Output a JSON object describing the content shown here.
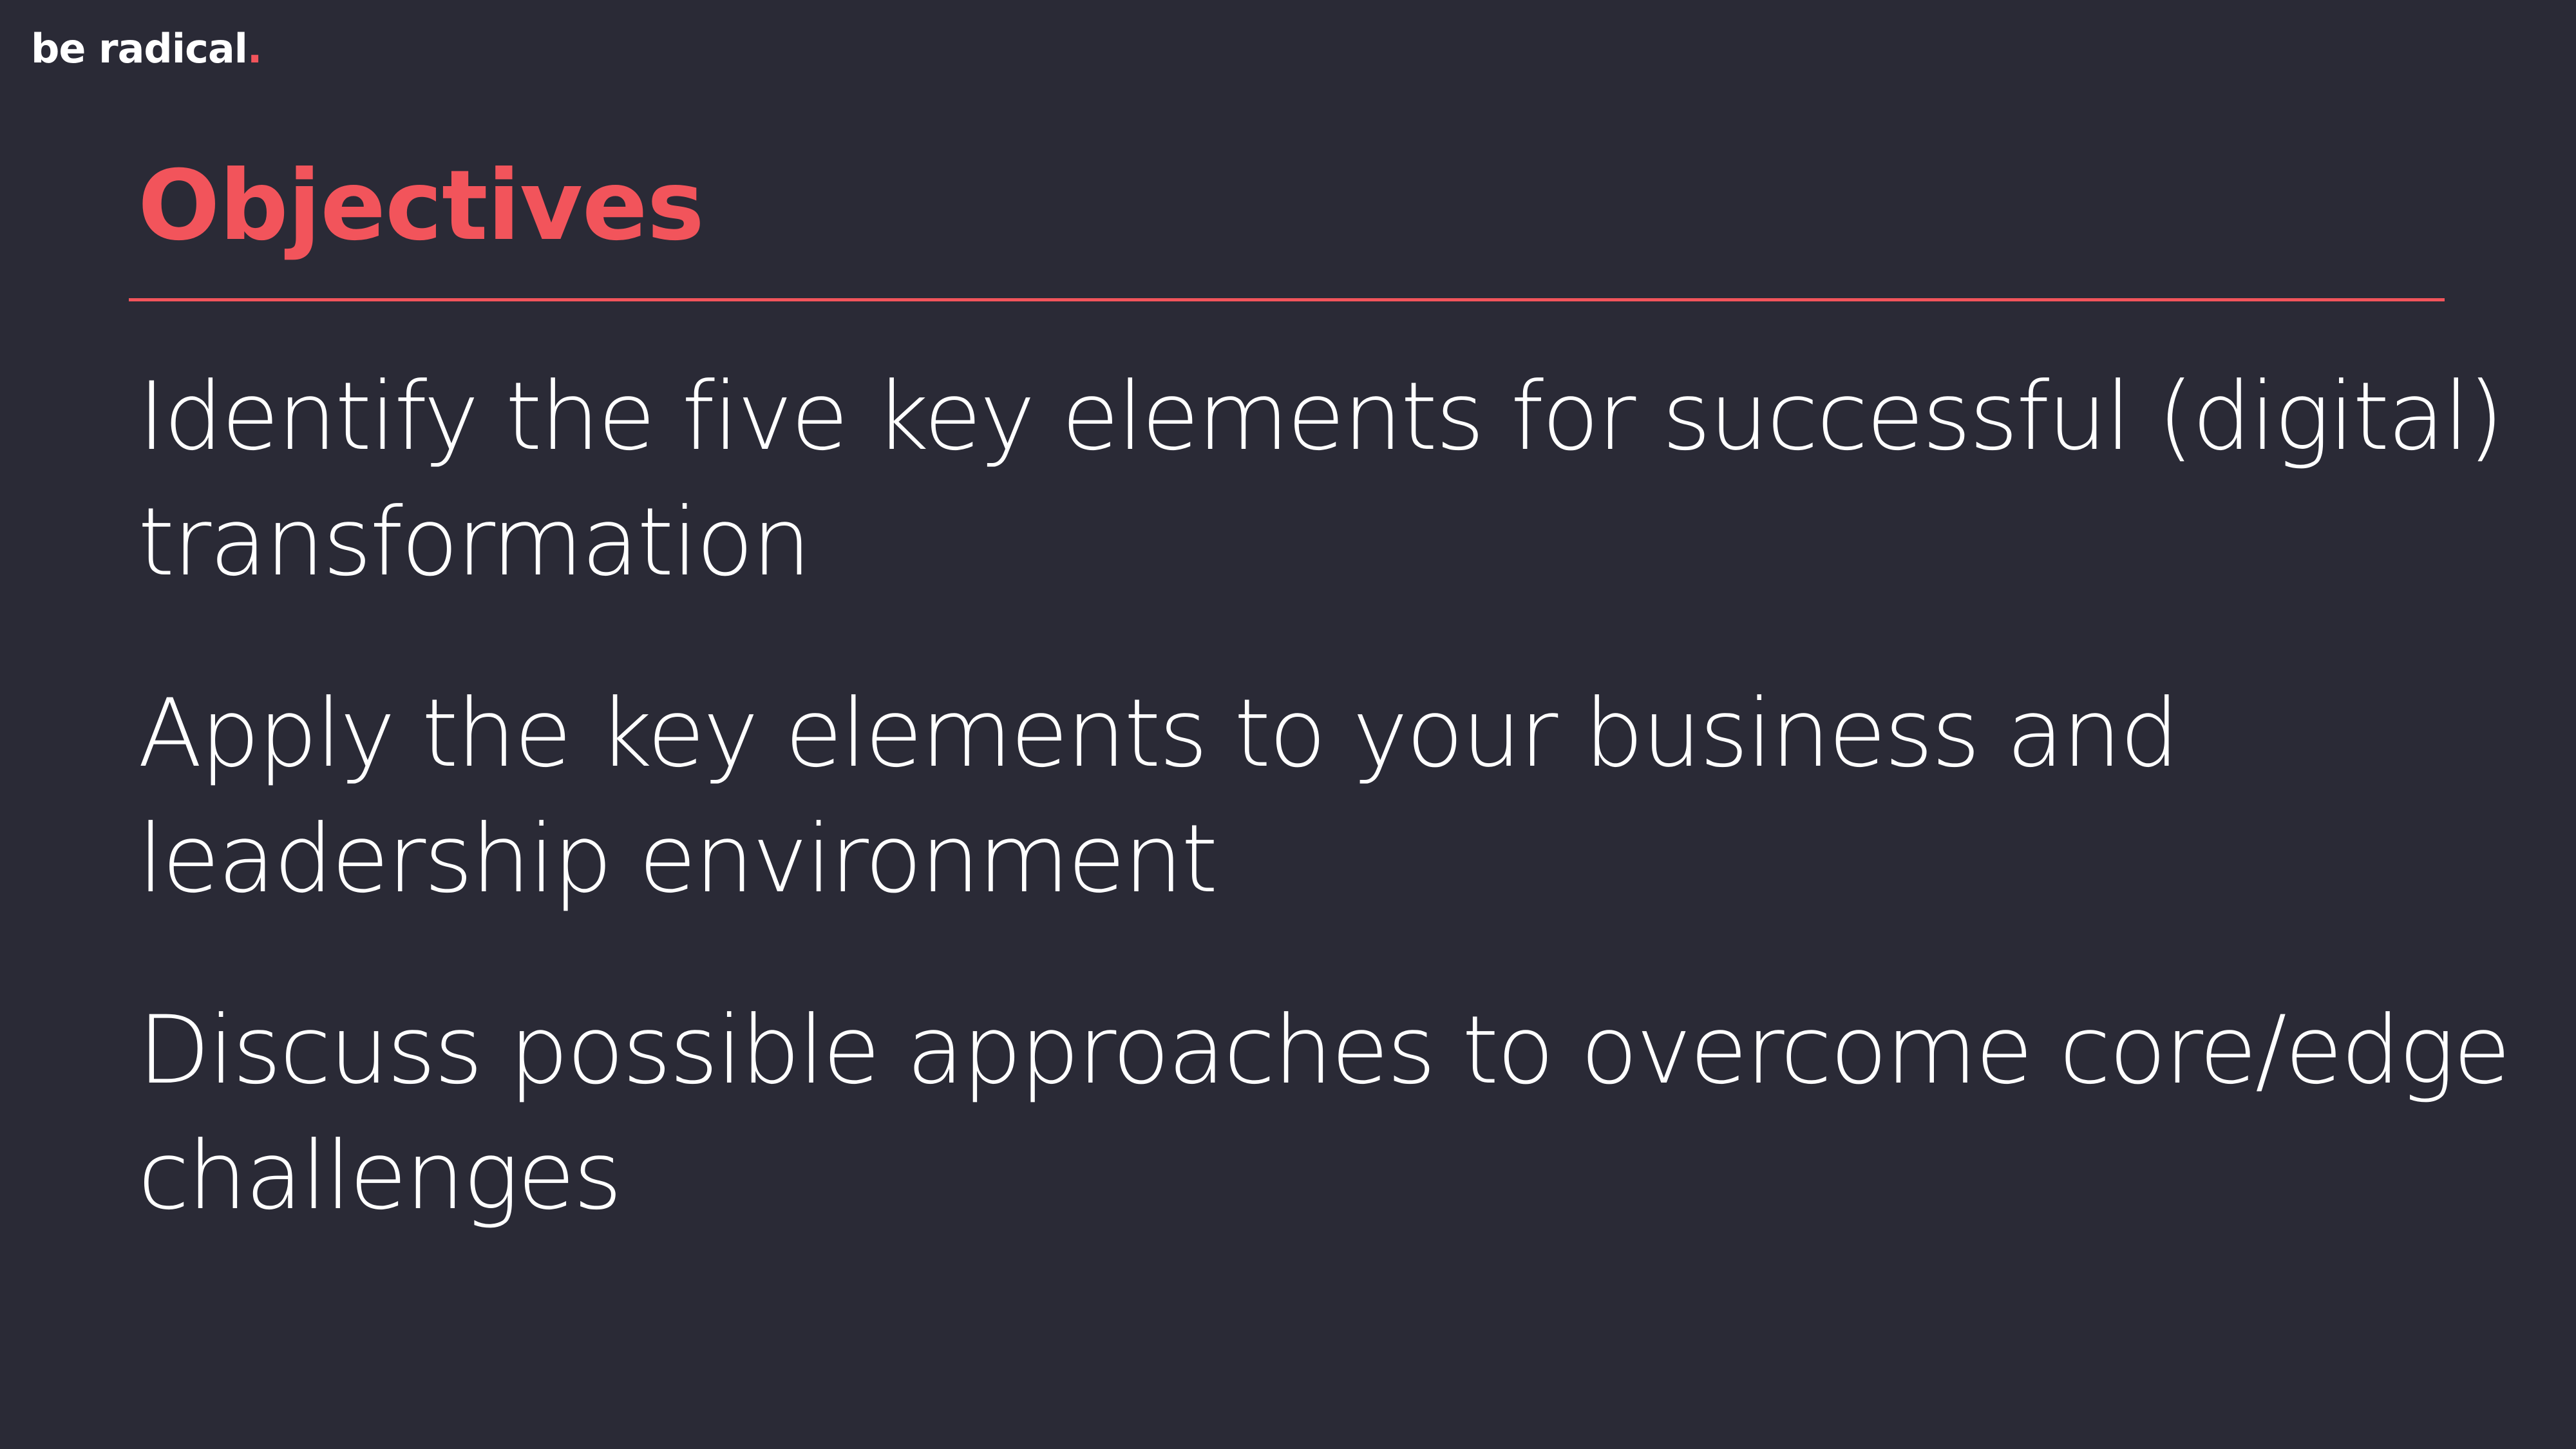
{
  "logo": {
    "text": "be radical",
    "dot": "."
  },
  "slide": {
    "title": "Objectives",
    "objectives": [
      "Identify the five key elements for successful (digital) transformation",
      "Apply the key elements to your business and leadership environment",
      "Discuss possible approaches to overcome core/edge challenges"
    ]
  },
  "colors": {
    "background": "#2a2a36",
    "accent": "#f2545b",
    "text": "#ffffff"
  }
}
